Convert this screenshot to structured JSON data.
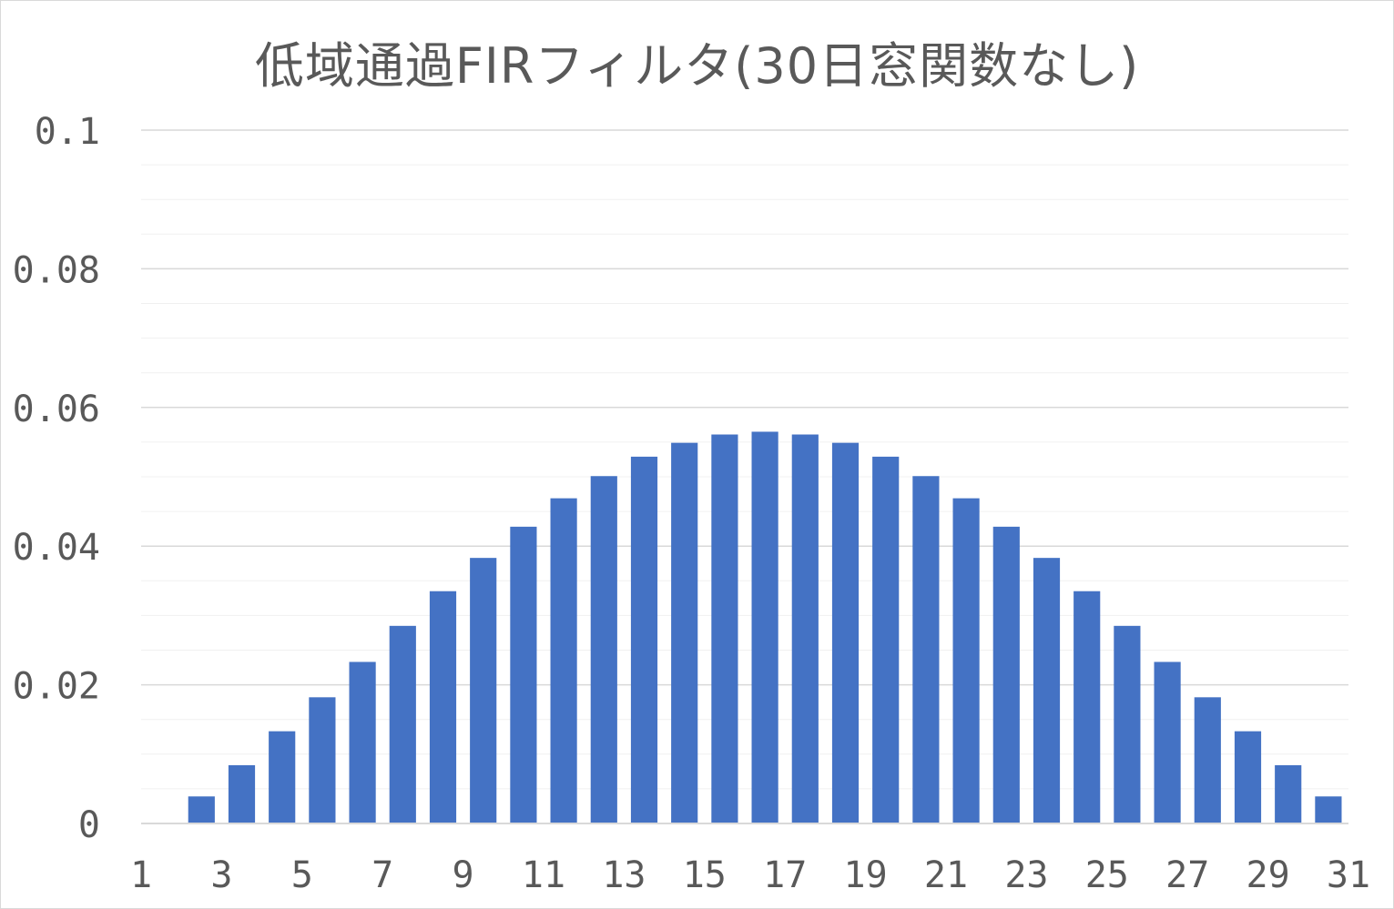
{
  "chart_data": {
    "type": "bar",
    "title": "低域通過FIRフィルタ(30日窓関数なし)",
    "xlabel": "",
    "ylabel": "",
    "categories": [
      1,
      2,
      3,
      4,
      5,
      6,
      7,
      8,
      9,
      10,
      11,
      12,
      13,
      14,
      15,
      16,
      17,
      18,
      19,
      20,
      21,
      22,
      23,
      24,
      25,
      26,
      27,
      28,
      29,
      30,
      31
    ],
    "values": [
      0,
      0.0039,
      0.0084,
      0.0133,
      0.0182,
      0.0233,
      0.0285,
      0.0335,
      0.0383,
      0.0428,
      0.0469,
      0.0501,
      0.0529,
      0.0549,
      0.0561,
      0.0565,
      0.0561,
      0.0549,
      0.0529,
      0.0501,
      0.0469,
      0.0428,
      0.0383,
      0.0335,
      0.0285,
      0.0233,
      0.0182,
      0.0133,
      0.0084,
      0.0039,
      0
    ],
    "ylim": [
      0,
      0.1
    ],
    "y_ticks": [
      0,
      0.02,
      0.04,
      0.06,
      0.08,
      0.1
    ],
    "y_tick_labels": [
      "0",
      "0.02",
      "0.04",
      "0.06",
      "0.08",
      "0.1"
    ],
    "x_tick_labels": [
      "1",
      "3",
      "5",
      "7",
      "9",
      "11",
      "13",
      "15",
      "17",
      "19",
      "21",
      "23",
      "25",
      "27",
      "29",
      "31"
    ],
    "bar_color": "#4472C4",
    "gridline_color": "#d9d9d9",
    "minor_gridline_color": "#f0f0f0",
    "grid": true,
    "legend": false
  }
}
